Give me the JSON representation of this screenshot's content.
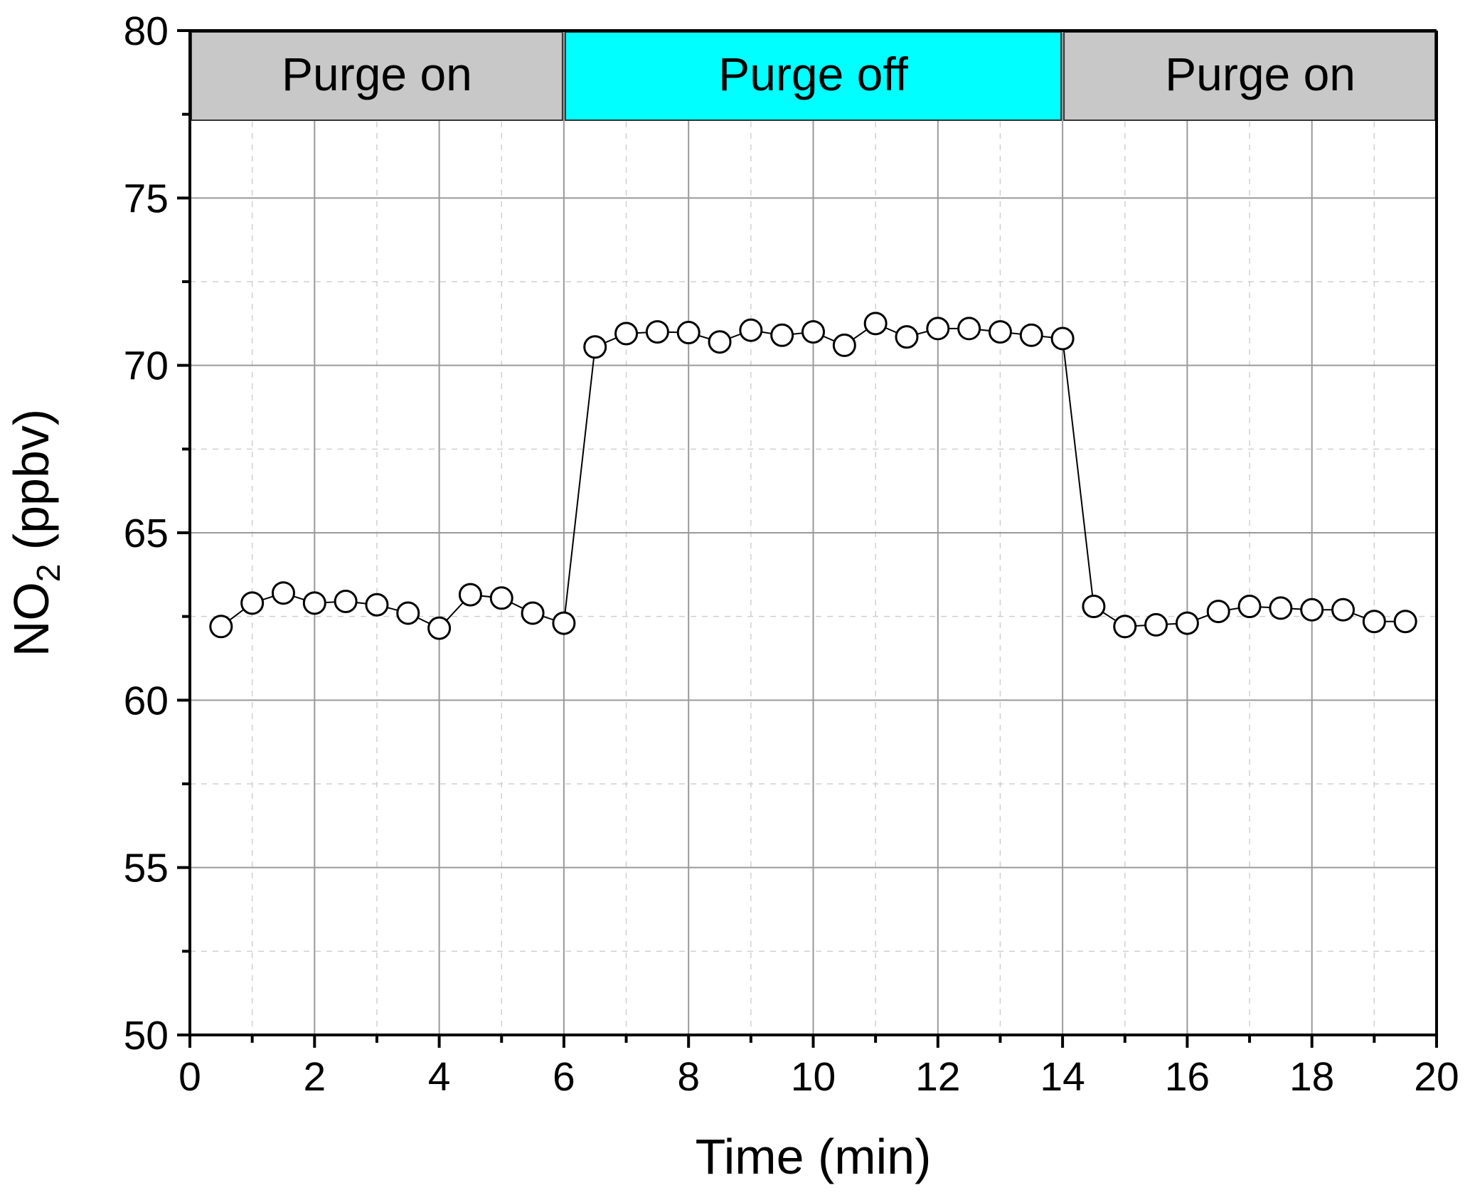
{
  "chart_data": {
    "type": "scatter",
    "title": "",
    "xlabel": "Time (min)",
    "ylabel": {
      "main": "NO",
      "subscript": "2",
      "unit": " (ppbv)"
    },
    "xlim": [
      0,
      20
    ],
    "ylim": [
      50,
      80
    ],
    "x_ticks": [
      "0",
      "2",
      "4",
      "6",
      "8",
      "10",
      "12",
      "14",
      "16",
      "18",
      "20"
    ],
    "y_ticks": [
      "50",
      "55",
      "60",
      "65",
      "70",
      "75",
      "80"
    ],
    "grid": true,
    "bands": [
      {
        "label": "Purge on",
        "x_start": 0,
        "x_end": 6,
        "color": "#c8c8c8"
      },
      {
        "label": "Purge off",
        "x_start": 6,
        "x_end": 14,
        "color": "#00ffff"
      },
      {
        "label": "Purge on",
        "x_start": 14,
        "x_end": 20,
        "color": "#c8c8c8"
      }
    ],
    "series": [
      {
        "marker": "open-circle",
        "line_color": "#000000",
        "x": [
          0.5,
          1,
          1.5,
          2,
          2.5,
          3,
          3.5,
          4,
          4.5,
          5,
          5.5,
          6,
          6.5,
          7,
          7.5,
          8,
          8.5,
          9,
          9.5,
          10,
          10.5,
          11,
          11.5,
          12,
          12.5,
          13,
          13.5,
          14,
          14.5,
          15,
          15.5,
          16,
          16.5,
          17,
          17.5,
          18,
          18.5,
          19,
          19.5
        ],
        "y": [
          62.2,
          62.9,
          63.2,
          62.9,
          62.95,
          62.85,
          62.6,
          62.15,
          63.15,
          63.05,
          62.6,
          62.3,
          70.55,
          70.95,
          71.0,
          70.98,
          70.7,
          71.05,
          70.9,
          71.0,
          70.6,
          71.25,
          70.85,
          71.1,
          71.1,
          71.0,
          70.9,
          70.8,
          62.8,
          62.2,
          62.25,
          62.3,
          62.65,
          62.8,
          62.75,
          62.7,
          62.7,
          62.35,
          62.35
        ]
      }
    ]
  }
}
